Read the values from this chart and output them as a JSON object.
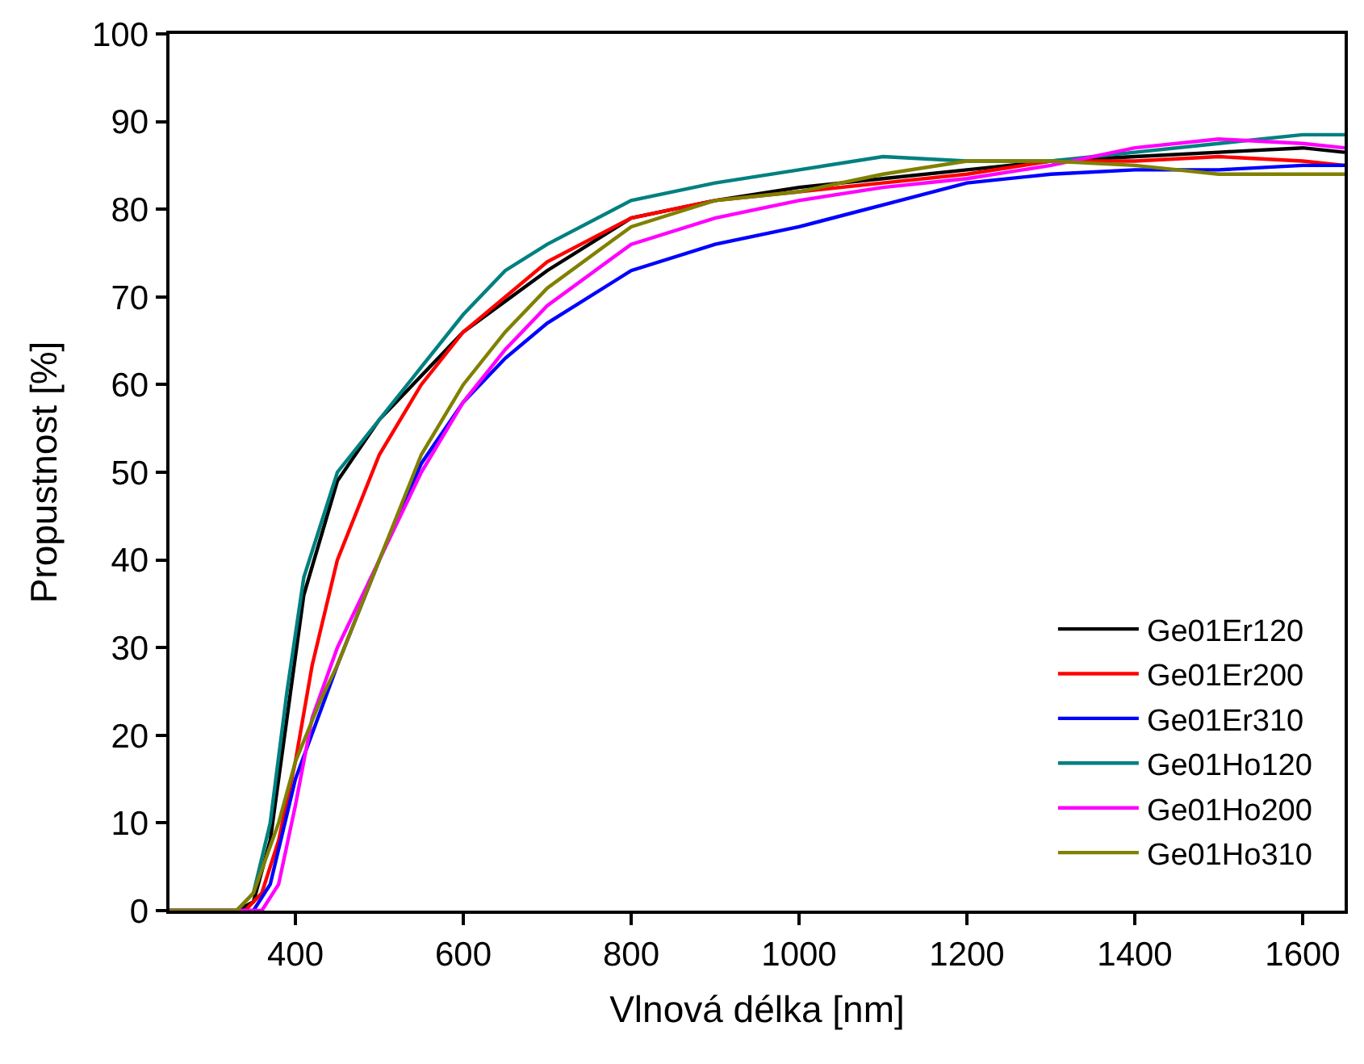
{
  "chart_data": {
    "type": "line",
    "xlabel": "Vlnová délka [nm]",
    "ylabel": "Propustnost [%]",
    "xlim": [
      250,
      1650
    ],
    "ylim": [
      0,
      100
    ],
    "xticks": [
      400,
      600,
      800,
      1000,
      1200,
      1400,
      1600
    ],
    "yticks": [
      0,
      10,
      20,
      30,
      40,
      50,
      60,
      70,
      80,
      90,
      100
    ],
    "legend": "bottom right",
    "marker": "none",
    "line_style": "solid",
    "series": [
      {
        "name": "Ge01Er120",
        "color": "#000000",
        "x": [
          250,
          330,
          350,
          370,
          390,
          410,
          450,
          500,
          550,
          600,
          700,
          800,
          900,
          1000,
          1100,
          1200,
          1300,
          1400,
          1500,
          1600,
          1650
        ],
        "values": [
          0,
          0,
          1,
          8,
          22,
          36,
          49,
          56,
          61,
          66,
          73,
          79,
          81,
          82.5,
          83.5,
          84.5,
          85.5,
          86,
          86.5,
          87,
          86.5
        ]
      },
      {
        "name": "Ge01Er200",
        "color": "#ff0000",
        "x": [
          250,
          340,
          360,
          380,
          400,
          420,
          450,
          500,
          550,
          600,
          700,
          800,
          900,
          1000,
          1100,
          1200,
          1300,
          1400,
          1500,
          1600,
          1650
        ],
        "values": [
          0,
          0,
          2,
          8,
          17,
          28,
          40,
          52,
          60,
          66,
          74,
          79,
          81,
          82,
          83,
          84,
          85.5,
          85.5,
          86,
          85.5,
          85
        ]
      },
      {
        "name": "Ge01Er310",
        "color": "#0000ff",
        "x": [
          250,
          350,
          370,
          400,
          450,
          500,
          550,
          600,
          650,
          700,
          800,
          900,
          1000,
          1100,
          1200,
          1300,
          1400,
          1500,
          1600,
          1650
        ],
        "values": [
          0,
          0,
          3,
          15,
          28,
          40,
          51,
          58,
          63,
          67,
          73,
          76,
          78,
          80.5,
          83,
          84,
          84.5,
          84.5,
          85,
          85
        ]
      },
      {
        "name": "Ge01Ho120",
        "color": "#008080",
        "x": [
          250,
          330,
          350,
          370,
          390,
          410,
          450,
          500,
          550,
          600,
          650,
          700,
          800,
          900,
          1000,
          1100,
          1200,
          1300,
          1400,
          1500,
          1600,
          1650
        ],
        "values": [
          0,
          0,
          2,
          10,
          25,
          38,
          50,
          56,
          62,
          68,
          73,
          76,
          81,
          83,
          84.5,
          86,
          85.5,
          85.5,
          86.5,
          87.5,
          88.5,
          88.5
        ]
      },
      {
        "name": "Ge01Ho200",
        "color": "#ff00ff",
        "x": [
          250,
          360,
          380,
          400,
          420,
          450,
          500,
          550,
          600,
          650,
          700,
          800,
          900,
          1000,
          1100,
          1200,
          1300,
          1400,
          1500,
          1600,
          1650
        ],
        "values": [
          0,
          0,
          3,
          12,
          22,
          30,
          40,
          50,
          58,
          64,
          69,
          76,
          79,
          81,
          82.5,
          83.5,
          85,
          87,
          88,
          87.5,
          87
        ]
      },
      {
        "name": "Ge01Ho310",
        "color": "#808000",
        "x": [
          250,
          330,
          350,
          380,
          400,
          430,
          450,
          500,
          550,
          600,
          650,
          700,
          800,
          900,
          1000,
          1100,
          1200,
          1300,
          1400,
          1500,
          1600,
          1650
        ],
        "values": [
          0,
          0,
          2,
          10,
          17,
          24,
          28,
          40,
          52,
          60,
          66,
          71,
          78,
          81,
          82,
          84,
          85.5,
          85.5,
          85,
          84,
          84,
          84
        ]
      }
    ]
  }
}
